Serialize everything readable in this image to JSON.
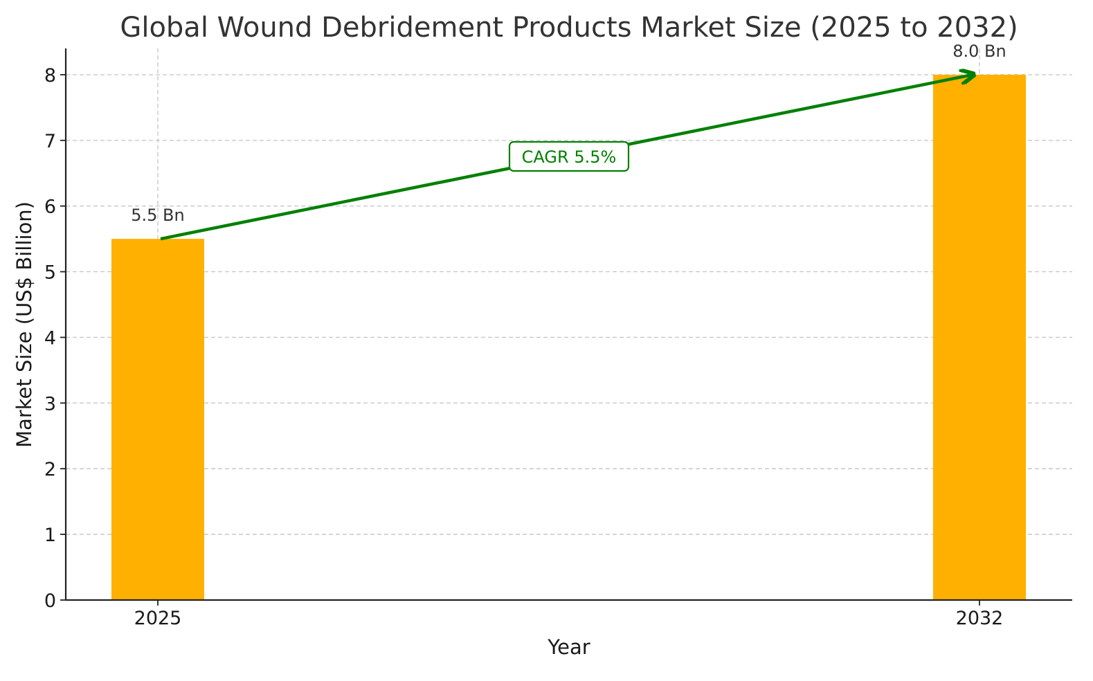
{
  "chart_data": {
    "type": "bar",
    "title": "Global Wound Debridement Products Market Size (2025 to 2032)",
    "xlabel": "Year",
    "ylabel": "Market Size (US$ Billion)",
    "categories": [
      "2025",
      "2032"
    ],
    "values": [
      5.5,
      8.0
    ],
    "data_labels": [
      "5.5 Bn",
      "8.0 Bn"
    ],
    "ylim": [
      0,
      8.4
    ],
    "yticks": [
      0,
      1,
      2,
      3,
      4,
      5,
      6,
      7,
      8
    ],
    "grid": true,
    "legend": "none",
    "annotation": {
      "text": "CAGR 5.5%",
      "from": {
        "x": "2025",
        "y": 5.5
      },
      "to": {
        "x": "2032",
        "y": 8.0
      }
    },
    "colors": {
      "bar": "#FFB000",
      "arrow": "#008000",
      "annotation_text": "#008000",
      "annotation_border": "#008000"
    }
  }
}
